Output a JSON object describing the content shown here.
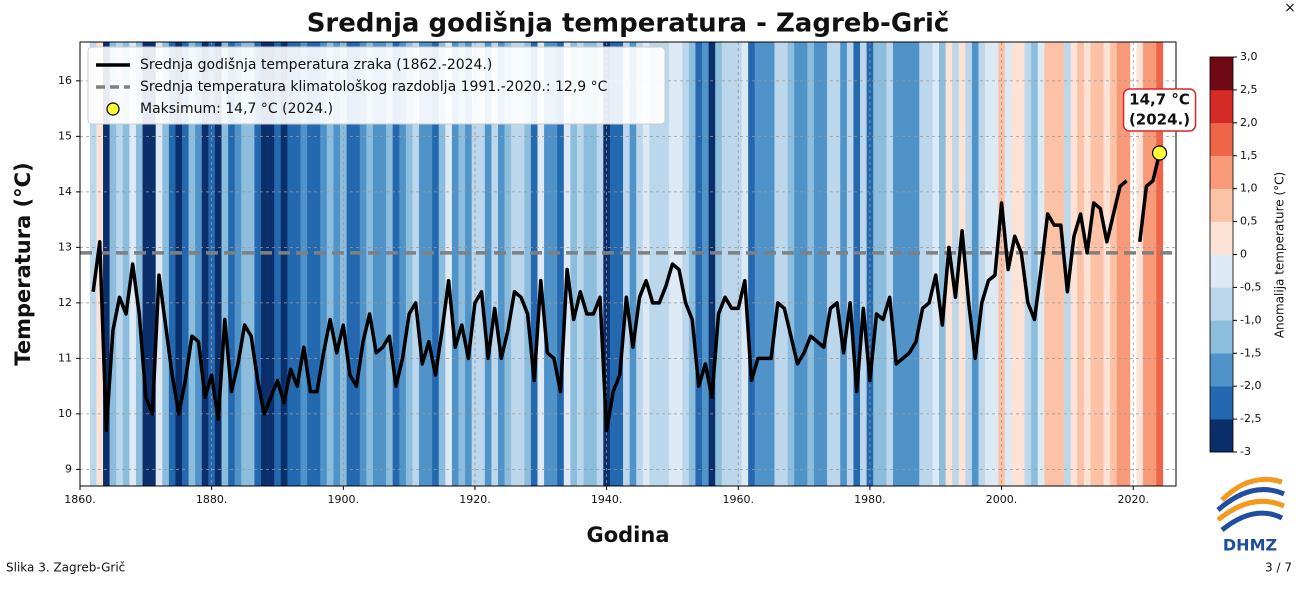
{
  "chart_data": {
    "type": "line",
    "title": "Srednja godišnja temperatura - Zagreb-Grič",
    "x_label": "Godina",
    "y_label": "Temperatura (°C)",
    "x": [
      1862,
      1863,
      1864,
      1865,
      1866,
      1867,
      1868,
      1869,
      1870,
      1871,
      1872,
      1873,
      1874,
      1875,
      1876,
      1877,
      1878,
      1879,
      1880,
      1881,
      1882,
      1883,
      1884,
      1885,
      1886,
      1887,
      1888,
      1889,
      1890,
      1891,
      1892,
      1893,
      1894,
      1895,
      1896,
      1897,
      1898,
      1899,
      1900,
      1901,
      1902,
      1903,
      1904,
      1905,
      1906,
      1907,
      1908,
      1909,
      1910,
      1911,
      1912,
      1913,
      1914,
      1915,
      1916,
      1917,
      1918,
      1919,
      1920,
      1921,
      1922,
      1923,
      1924,
      1925,
      1926,
      1927,
      1928,
      1929,
      1930,
      1931,
      1932,
      1933,
      1934,
      1935,
      1936,
      1937,
      1938,
      1939,
      1940,
      1941,
      1942,
      1943,
      1944,
      1945,
      1946,
      1947,
      1948,
      1949,
      1950,
      1951,
      1952,
      1953,
      1954,
      1955,
      1956,
      1957,
      1958,
      1959,
      1960,
      1961,
      1962,
      1963,
      1964,
      1965,
      1966,
      1967,
      1968,
      1969,
      1970,
      1971,
      1972,
      1973,
      1974,
      1975,
      1976,
      1977,
      1978,
      1979,
      1980,
      1981,
      1982,
      1983,
      1984,
      1985,
      1986,
      1987,
      1988,
      1989,
      1990,
      1991,
      1992,
      1993,
      1994,
      1995,
      1996,
      1997,
      1998,
      1999,
      2000,
      2001,
      2002,
      2003,
      2004,
      2005,
      2006,
      2007,
      2008,
      2009,
      2010,
      2011,
      2012,
      2013,
      2014,
      2015,
      2016,
      2017,
      2018,
      2019,
      2020,
      2021,
      2022,
      2023,
      2024
    ],
    "series": [
      {
        "name": "Srednja godišnja temperatura zraka (1862.-2024.)",
        "color": "#000000",
        "values": [
          12.2,
          13.1,
          9.7,
          11.5,
          12.1,
          11.8,
          12.7,
          11.8,
          10.3,
          10.0,
          12.5,
          11.6,
          10.7,
          10.0,
          10.6,
          11.4,
          11.3,
          10.3,
          10.7,
          9.9,
          11.7,
          10.4,
          10.9,
          11.6,
          11.4,
          10.6,
          10.0,
          10.3,
          10.6,
          10.2,
          10.8,
          10.5,
          11.2,
          10.4,
          10.4,
          11.1,
          11.7,
          11.1,
          11.6,
          10.7,
          10.5,
          11.3,
          11.8,
          11.1,
          11.2,
          11.4,
          10.5,
          11.0,
          11.8,
          12.0,
          10.9,
          11.3,
          10.7,
          11.5,
          12.4,
          11.2,
          11.6,
          11.0,
          12.0,
          12.2,
          11.0,
          11.9,
          11.0,
          11.5,
          12.2,
          12.1,
          11.8,
          10.6,
          12.4,
          11.1,
          11.0,
          10.4,
          12.6,
          11.7,
          12.2,
          11.8,
          11.8,
          12.1,
          9.7,
          10.4,
          10.7,
          12.1,
          11.2,
          12.1,
          12.4,
          12.0,
          12.0,
          12.3,
          12.7,
          12.6,
          12.0,
          11.7,
          10.5,
          10.9,
          10.3,
          11.8,
          12.1,
          11.9,
          11.9,
          12.4,
          10.6,
          11.0,
          11.0,
          11.0,
          12.0,
          11.9,
          11.4,
          10.9,
          11.1,
          11.4,
          11.3,
          11.2,
          11.9,
          12.0,
          11.1,
          12.0,
          10.4,
          11.9,
          10.6,
          11.8,
          11.7,
          12.1,
          10.9,
          11.0,
          11.1,
          11.3,
          11.9,
          12.0,
          12.5,
          11.6,
          13.0,
          12.1,
          13.3,
          12.0,
          11.0,
          12.0,
          12.4,
          12.5,
          13.8,
          12.6,
          13.2,
          12.9,
          12.0,
          11.7,
          12.6,
          13.6,
          13.4,
          13.4,
          12.2,
          13.2,
          13.6,
          12.9,
          13.8,
          13.7,
          13.1,
          13.6,
          14.1,
          14.2,
          null,
          13.1,
          14.1,
          14.2,
          14.7
        ]
      }
    ],
    "reference_line": {
      "name": "Srednja temperatura klimatološkog razdoblja 1991.-2020.: 12,9 °C",
      "value": 12.9,
      "color": "#808080"
    },
    "maximum": {
      "name": "Maksimum: 14,7 °C (2024.)",
      "color": "#ffff33",
      "annotation": [
        "14,7 °C",
        "(2024.)"
      ]
    },
    "xlim": [
      1860,
      2026.5
    ],
    "ylim": [
      8.7,
      16.7
    ],
    "xticks": [
      {
        "value": 1860,
        "label": "1860."
      },
      {
        "value": 1880,
        "label": "1880."
      },
      {
        "value": 1900,
        "label": "1900."
      },
      {
        "value": 1920,
        "label": "1920."
      },
      {
        "value": 1940,
        "label": "1940."
      },
      {
        "value": 1960,
        "label": "1960."
      },
      {
        "value": 1980,
        "label": "1980."
      },
      {
        "value": 2000,
        "label": "2000."
      },
      {
        "value": 2020,
        "label": "2020."
      }
    ],
    "yticks": [
      9,
      10,
      11,
      12,
      13,
      14,
      15,
      16
    ],
    "grid": true,
    "colorbar": {
      "label": "Anomalija temperature (°C)",
      "lim": [
        -3,
        3
      ],
      "colors": [
        "#0a2f6b",
        "#2468b0",
        "#4f93c9",
        "#8cbddd",
        "#bcd7ec",
        "#dde9f4",
        "#fde3d6",
        "#fbc2a6",
        "#f89a78",
        "#ef6548",
        "#d52b26",
        "#6f0a14"
      ],
      "ticks": [
        {
          "value": 3,
          "label": "3,0"
        },
        {
          "value": 2.5,
          "label": "2,5"
        },
        {
          "value": 2,
          "label": "2,0"
        },
        {
          "value": 1.5,
          "label": "1,5"
        },
        {
          "value": 1,
          "label": "1,0"
        },
        {
          "value": 0.5,
          "label": "0,5"
        },
        0,
        {
          "value": -0.5,
          "label": "-0,5"
        },
        {
          "value": -1,
          "label": "-1,0"
        },
        {
          "value": -1.5,
          "label": "-1,5"
        },
        {
          "value": -2,
          "label": "-2,0"
        },
        {
          "value": -2.5,
          "label": "-2,5"
        },
        -3
      ]
    }
  },
  "footer": {
    "caption": "Slika 3. Zagreb-Grič",
    "page": "3 / 7",
    "close": "×",
    "logo": "DHMZ"
  }
}
